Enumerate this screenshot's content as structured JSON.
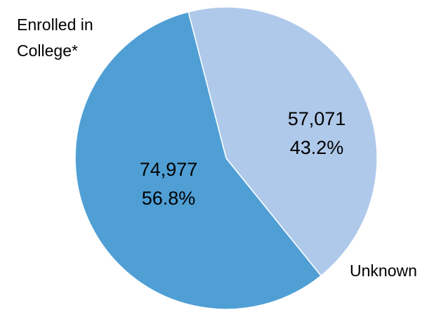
{
  "chart_data": {
    "type": "pie",
    "slices": [
      {
        "label": "Enrolled in College*",
        "label_lines": [
          "Enrolled in",
          "College*"
        ],
        "value": 74977,
        "value_text": "74,977",
        "percent": 56.8,
        "percent_text": "56.8%",
        "color": "#4f9fd5"
      },
      {
        "label": "Unknown",
        "label_lines": [
          "Unknown"
        ],
        "value": 57071,
        "value_text": "57,071",
        "percent": 43.2,
        "percent_text": "43.2%",
        "color": "#afc9ea"
      }
    ],
    "legend": "none"
  }
}
